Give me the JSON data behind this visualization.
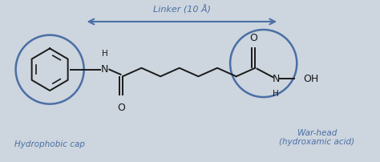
{
  "background_color": "#cdd5de",
  "circle_color": "#4a6fa5",
  "line_color": "#1a1a1a",
  "label_color": "#4a6fa5",
  "arrow_color": "#4a6fa5",
  "linker_label": "Linker (10 Å)",
  "hydrophobic_label": "Hydrophobic cap",
  "warhead_label": "War-head\n(hydroxamic acid)",
  "fig_width": 4.74,
  "fig_height": 2.02,
  "dpi": 100,
  "xlim": [
    0,
    10
  ],
  "ylim": [
    0,
    4.2
  ]
}
